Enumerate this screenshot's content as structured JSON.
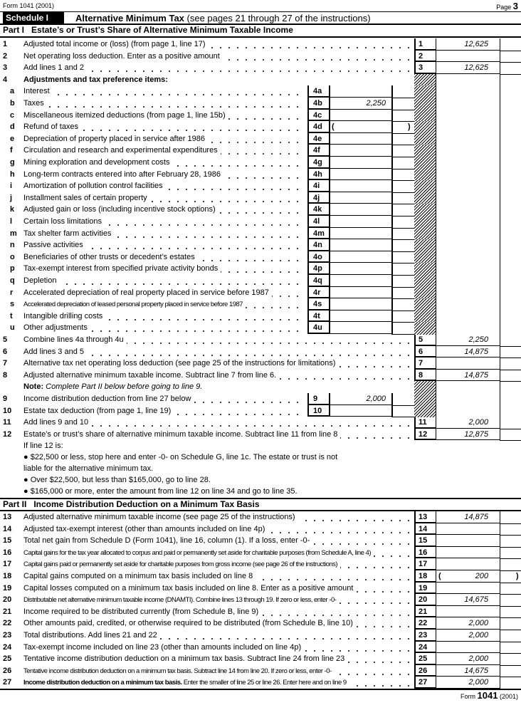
{
  "header": {
    "form_label": "Form 1041 (2001)",
    "page_label": "Page",
    "page_number": "3"
  },
  "schedule": {
    "badge": "Schedule I",
    "title_bold": "Alternative Minimum Tax",
    "title_rest": "(see pages 21 through 27 of the instructions)"
  },
  "part1": {
    "heading": "Part I   Estate’s or Trust’s Share of Alternative Minimum Taxable Income",
    "rows": [
      {
        "type": "main",
        "num": "1",
        "text": "Adjusted total income or (loss) (from page 1, line 17)",
        "box": "1",
        "value": "12,625"
      },
      {
        "type": "main",
        "num": "2",
        "text": "Net operating loss deduction. Enter as a positive amount",
        "box": "2",
        "value": ""
      },
      {
        "type": "main",
        "num": "3",
        "text": "Add lines 1 and 2",
        "box": "3",
        "value": "12,625"
      },
      {
        "type": "head",
        "num": "4",
        "text": "Adjustments and tax preference items:"
      },
      {
        "type": "sub",
        "letter": "a",
        "text": "Interest",
        "box": "4a",
        "value": ""
      },
      {
        "type": "sub",
        "letter": "b",
        "text": "Taxes",
        "box": "4b",
        "value": "2,250"
      },
      {
        "type": "sub",
        "letter": "c",
        "text": "Miscellaneous itemized deductions (from page 1, line 15b)",
        "box": "4c",
        "value": ""
      },
      {
        "type": "sub",
        "letter": "d",
        "text": "Refund of taxes",
        "box": "4d",
        "value": "",
        "paren": true
      },
      {
        "type": "sub",
        "letter": "e",
        "text": "Depreciation of property placed in service after 1986",
        "box": "4e",
        "value": ""
      },
      {
        "type": "sub",
        "letter": "f",
        "text": "Circulation and research and experimental expenditures",
        "box": "4f",
        "value": ""
      },
      {
        "type": "sub",
        "letter": "g",
        "text": "Mining exploration and development costs",
        "box": "4g",
        "value": ""
      },
      {
        "type": "sub",
        "letter": "h",
        "text": "Long-term contracts entered into after February 28, 1986",
        "box": "4h",
        "value": ""
      },
      {
        "type": "sub",
        "letter": "i",
        "text": "Amortization of pollution control facilities",
        "box": "4i",
        "value": ""
      },
      {
        "type": "sub",
        "letter": "j",
        "text": "Installment sales of certain property",
        "box": "4j",
        "value": ""
      },
      {
        "type": "sub",
        "letter": "k",
        "text": "Adjusted gain or loss (including incentive stock options)",
        "box": "4k",
        "value": ""
      },
      {
        "type": "sub",
        "letter": "l",
        "text": "Certain loss limitations",
        "box": "4l",
        "value": ""
      },
      {
        "type": "sub",
        "letter": "m",
        "text": "Tax shelter farm activities",
        "box": "4m",
        "value": ""
      },
      {
        "type": "sub",
        "letter": "n",
        "text": "Passive activities",
        "box": "4n",
        "value": ""
      },
      {
        "type": "sub",
        "letter": "o",
        "text": "Beneficiaries of other trusts or decedent’s estates",
        "box": "4o",
        "value": ""
      },
      {
        "type": "sub",
        "letter": "p",
        "text": "Tax-exempt interest from specified private activity bonds",
        "box": "4p",
        "value": ""
      },
      {
        "type": "sub",
        "letter": "q",
        "text": "Depletion",
        "box": "4q",
        "value": ""
      },
      {
        "type": "sub",
        "letter": "r",
        "text": "Accelerated depreciation of real property placed in service before 1987",
        "box": "4r",
        "value": ""
      },
      {
        "type": "sub",
        "letter": "s",
        "text": "Accelerated depreciation of leased personal property placed in service before 1987",
        "box": "4s",
        "value": "",
        "cond": true
      },
      {
        "type": "sub",
        "letter": "t",
        "text": "Intangible drilling costs",
        "box": "4t",
        "value": ""
      },
      {
        "type": "sub",
        "letter": "u",
        "text": "Other adjustments",
        "box": "4u",
        "value": ""
      },
      {
        "type": "main",
        "num": "5",
        "text": "Combine lines 4a through 4u",
        "box": "5",
        "value": "2,250"
      },
      {
        "type": "main",
        "num": "6",
        "text": "Add lines 3 and 5",
        "box": "6",
        "value": "14,875"
      },
      {
        "type": "main",
        "num": "7",
        "text": "Alternative tax net operating loss deduction (see page 25 of the instructions for limitations)",
        "box": "7",
        "value": ""
      },
      {
        "type": "main",
        "num": "8",
        "text": "Adjusted alternative minimum taxable income. Subtract line 7 from line 6.",
        "box": "8",
        "value": "14,875"
      },
      {
        "type": "note",
        "text_bold": "Note:",
        "text": "Complete Part II below before going to line 9."
      },
      {
        "type": "inner",
        "num": "9",
        "text": "Income distribution deduction from line 27 below",
        "box": "9",
        "value": "2,000"
      },
      {
        "type": "inner",
        "num": "10",
        "text": "Estate tax deduction (from page 1, line 19)",
        "box": "10",
        "value": ""
      },
      {
        "type": "main",
        "num": "11",
        "text": "Add lines 9 and 10",
        "box": "11",
        "value": "2,000"
      },
      {
        "type": "main",
        "num": "12",
        "text": "Estate’s or trust’s share of alternative minimum taxable income. Subtract line 11 from line 8",
        "box": "12",
        "value": "12,875"
      }
    ],
    "line12_notes": [
      "If line 12 is:",
      "● $22,500 or less, stop here and enter -0- on Schedule G, line 1c. The estate or trust is not",
      "liable for the alternative minimum tax.",
      "● Over $22,500, but less than $165,000, go to line 28.",
      "● $165,000 or more, enter the amount from line 12 on line 34 and go to line 35."
    ]
  },
  "part2": {
    "heading": "Part II   Income Distribution Deduction on a Minimum Tax Basis",
    "rows": [
      {
        "type": "main",
        "num": "13",
        "text": "Adjusted alternative minimum taxable income (see page 25 of the instructions)",
        "box": "13",
        "value": "14,875"
      },
      {
        "type": "main",
        "num": "14",
        "text": "Adjusted tax-exempt interest (other than amounts included on line 4p)",
        "box": "14",
        "value": ""
      },
      {
        "type": "main",
        "num": "15",
        "text": "Total net gain from Schedule D (Form 1041), line 16, column (1). If a loss, enter -0-",
        "box": "15",
        "value": ""
      },
      {
        "type": "main",
        "num": "16",
        "text": "Capital gains for the tax year allocated to corpus and paid or permanently set aside for charitable purposes (from Schedule A, line 4)",
        "box": "16",
        "value": "",
        "cond": true
      },
      {
        "type": "main",
        "num": "17",
        "text": "Capital gains paid or permanently set aside for charitable purposes from gross income (see page 26 of the instructions)",
        "box": "17",
        "value": "",
        "cond": true
      },
      {
        "type": "main",
        "num": "18",
        "text": "Capital gains computed on a minimum tax basis included on line 8",
        "box": "18",
        "value": "200",
        "paren": true
      },
      {
        "type": "main",
        "num": "19",
        "text": "Capital losses computed on a minimum tax basis included on line 8. Enter as a positive amount",
        "box": "19",
        "value": ""
      },
      {
        "type": "main",
        "num": "20",
        "text": "Distributable net alternative minimum taxable income (DNAMTI). Combine lines 13 through 19. If zero or less, enter -0-",
        "box": "20",
        "value": "14,675",
        "cond": true
      },
      {
        "type": "main",
        "num": "21",
        "text": "Income required to be distributed currently (from Schedule B, line 9)",
        "box": "21",
        "value": ""
      },
      {
        "type": "main",
        "num": "22",
        "text": "Other amounts paid, credited, or otherwise required to be distributed (from Schedule B, line 10)",
        "box": "22",
        "value": "2,000"
      },
      {
        "type": "main",
        "num": "23",
        "text": "Total distributions. Add lines 21 and 22",
        "box": "23",
        "value": "2,000"
      },
      {
        "type": "main",
        "num": "24",
        "text": "Tax-exempt income included on line 23 (other than amounts included on line 4p)",
        "box": "24",
        "value": ""
      },
      {
        "type": "main",
        "num": "25",
        "text": "Tentative income distribution deduction on a minimum tax basis. Subtract line 24 from line 23",
        "box": "25",
        "value": "2,000"
      },
      {
        "type": "main",
        "num": "26",
        "text": "Tentative income distribution deduction on a minimum tax basis. Subtract line 14 from line 20. If zero or less, enter -0-",
        "box": "26",
        "value": "14,675",
        "cond": true
      },
      {
        "type": "main",
        "num": "27",
        "text_bold": "Income distribution deduction on a minimum tax basis.",
        "text": "Enter the smaller of line 25 or line 26. Enter here and on line 9",
        "box": "27",
        "value": "2,000",
        "cond": true
      }
    ]
  },
  "footer": {
    "form_word": "Form",
    "form_number": "1041",
    "year": "(2001)"
  }
}
